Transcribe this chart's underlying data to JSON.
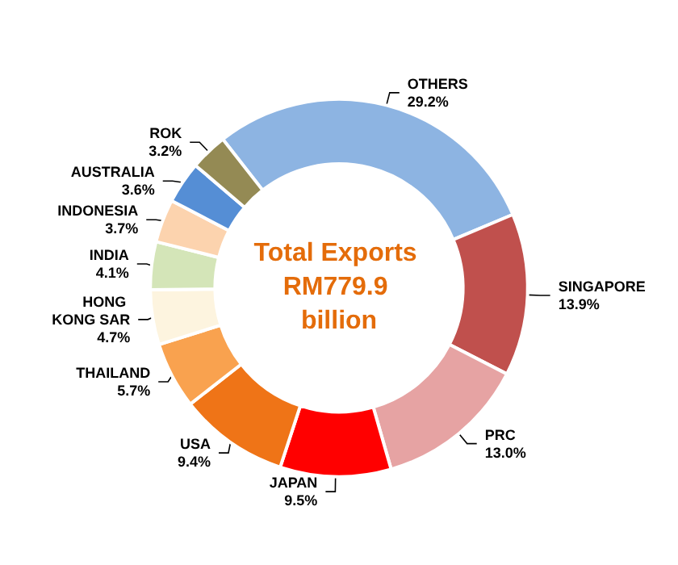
{
  "chart_data": {
    "type": "donut",
    "title": "Total Exports RM779.9 billion",
    "categories": [
      "OTHERS",
      "SINGAPORE",
      "PRC",
      "JAPAN",
      "USA",
      "THAILAND",
      "HONG KONG SAR",
      "INDIA",
      "INDONESIA",
      "AUSTRALIA",
      "ROK"
    ],
    "values": [
      29.2,
      13.9,
      13.0,
      9.5,
      9.4,
      5.7,
      4.7,
      4.1,
      3.7,
      3.6,
      3.2
    ],
    "colors": [
      "#8db4e2",
      "#c0504d",
      "#e6a3a3",
      "#ff0000",
      "#ef7417",
      "#f9a24f",
      "#fdf4df",
      "#d4e5b8",
      "#fcd3ae",
      "#558ed5",
      "#948a54"
    ],
    "value_labels": [
      "29.2%",
      "13.9%",
      "13.0%",
      "9.5%",
      "9.4%",
      "5.7%",
      "4.7%",
      "4.1%",
      "3.7%",
      "3.6%",
      "3.2%"
    ],
    "legend": false
  }
}
